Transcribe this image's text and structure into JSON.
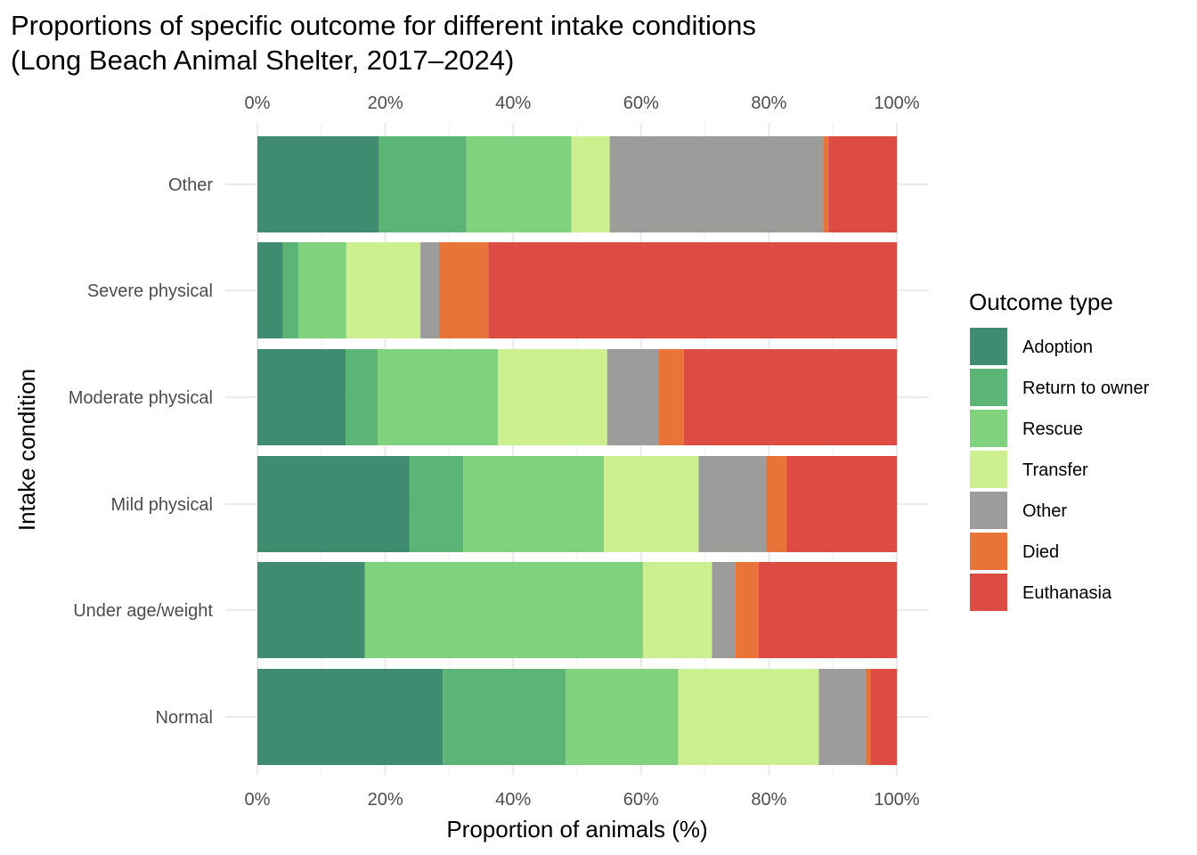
{
  "chart_data": {
    "type": "bar",
    "orientation": "horizontal",
    "stacked": true,
    "title_lines": [
      "Proportions of specific outcome for different intake conditions",
      "(Long Beach Animal Shelter, 2017–2024)"
    ],
    "xlabel": "Proportion of animals (%)",
    "ylabel": "Intake condition",
    "xlim": [
      0,
      100
    ],
    "x_ticks": [
      0,
      20,
      40,
      60,
      80,
      100
    ],
    "x_tick_labels": [
      "0%",
      "20%",
      "40%",
      "60%",
      "80%",
      "100%"
    ],
    "x_axis_position": "top-and-bottom",
    "grid": true,
    "legend_title": "Outcome type",
    "legend_position": "right",
    "categories": [
      "Other",
      "Severe physical",
      "Moderate physical",
      "Mild physical",
      "Under age/weight",
      "Normal"
    ],
    "series": [
      {
        "name": "Adoption",
        "color": "#3f8c70",
        "values": [
          19.0,
          4.0,
          13.8,
          23.8,
          16.8,
          29.0
        ]
      },
      {
        "name": "Return to owner",
        "color": "#5cb577",
        "values": [
          13.7,
          2.4,
          5.0,
          8.4,
          0.0,
          19.2
        ]
      },
      {
        "name": "Rescue",
        "color": "#80d27e",
        "values": [
          16.4,
          7.5,
          18.8,
          22.0,
          43.5,
          17.6
        ]
      },
      {
        "name": "Transfer",
        "color": "#ccf08f",
        "values": [
          6.0,
          11.6,
          17.1,
          14.8,
          10.8,
          22.0
        ]
      },
      {
        "name": "Other",
        "color": "#9c9c9a",
        "values": [
          33.4,
          2.9,
          8.0,
          10.6,
          3.6,
          7.4
        ]
      },
      {
        "name": "Died",
        "color": "#e8743a",
        "values": [
          0.8,
          7.7,
          4.0,
          3.2,
          3.7,
          0.7
        ]
      },
      {
        "name": "Euthanasia",
        "color": "#dd4c43",
        "values": [
          10.7,
          63.9,
          33.3,
          17.2,
          21.6,
          4.1
        ]
      }
    ]
  }
}
